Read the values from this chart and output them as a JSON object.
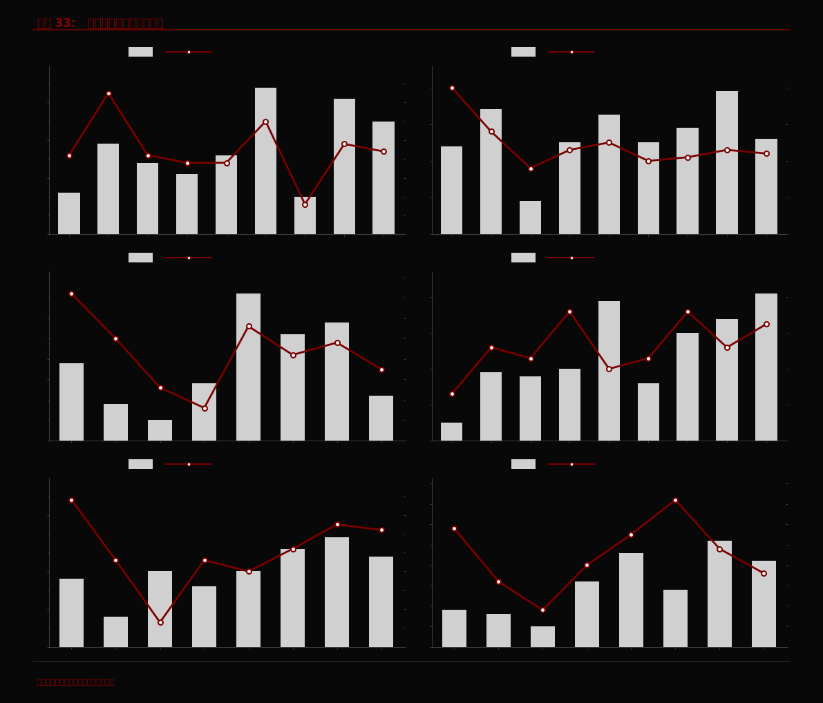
{
  "title": "图表 33:   主流房企今年拿地偏谨慎",
  "footer": "资料来源：公司数据，中金公司研究部",
  "background_color": "#080808",
  "bar_color": "#d0d0d0",
  "line_color": "#7a0000",
  "title_color": "#8b0000",
  "footer_color": "#8b0000",
  "n_cols": 2,
  "n_rows": 3,
  "subplots": [
    {
      "bar_values": [
        22,
        48,
        38,
        32,
        42,
        78,
        20,
        72,
        60
      ],
      "line_values": [
        42,
        75,
        42,
        38,
        38,
        60,
        16,
        48,
        44
      ]
    },
    {
      "bar_values": [
        48,
        68,
        18,
        50,
        65,
        50,
        58,
        78,
        52
      ],
      "line_values": [
        80,
        56,
        36,
        46,
        50,
        40,
        42,
        46,
        44
      ]
    },
    {
      "bar_values": [
        38,
        18,
        10,
        28,
        72,
        52,
        58,
        22
      ],
      "line_values": [
        72,
        50,
        26,
        16,
        56,
        42,
        48,
        35
      ]
    },
    {
      "bar_values": [
        10,
        38,
        36,
        40,
        78,
        32,
        60,
        68,
        82
      ],
      "line_values": [
        26,
        52,
        46,
        72,
        40,
        46,
        72,
        52,
        65
      ]
    },
    {
      "bar_values": [
        36,
        16,
        40,
        32,
        40,
        52,
        58,
        48
      ],
      "line_values": [
        78,
        46,
        13,
        46,
        40,
        52,
        65,
        62
      ]
    },
    {
      "bar_values": [
        18,
        16,
        10,
        32,
        46,
        28,
        52,
        42
      ],
      "line_values": [
        58,
        32,
        18,
        40,
        55,
        72,
        48,
        36
      ]
    }
  ]
}
